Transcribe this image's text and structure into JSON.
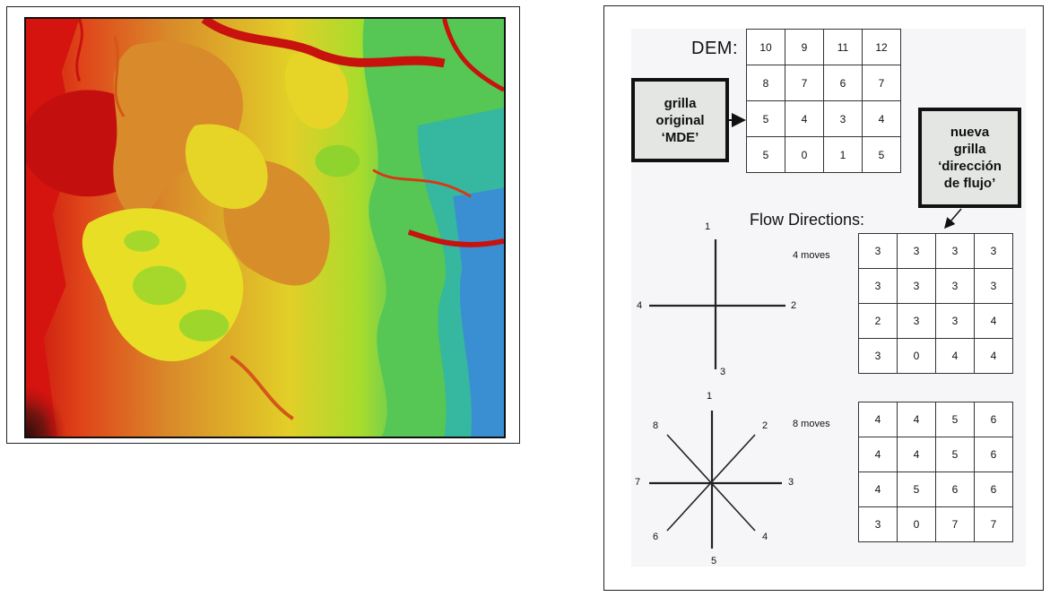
{
  "dem_title": "DEM:",
  "dem_grid": [
    [
      "10",
      "9",
      "11",
      "12"
    ],
    [
      "8",
      "7",
      "6",
      "7"
    ],
    [
      "5",
      "4",
      "3",
      "4"
    ],
    [
      "5",
      "0",
      "1",
      "5"
    ]
  ],
  "callout_original": [
    "grilla",
    "original",
    "‘MDE’"
  ],
  "callout_new": [
    "nueva",
    "grilla",
    "‘dirección",
    "de flujo’"
  ],
  "flow_title": "Flow Directions:",
  "four_moves": {
    "label": "4 moves",
    "numbers": {
      "up": "1",
      "right": "2",
      "down": "3",
      "left": "4"
    },
    "grid": [
      [
        "3",
        "3",
        "3",
        "3"
      ],
      [
        "3",
        "3",
        "3",
        "3"
      ],
      [
        "2",
        "3",
        "3",
        "4"
      ],
      [
        "3",
        "0",
        "4",
        "4"
      ]
    ]
  },
  "eight_moves": {
    "label": "8 moves",
    "numbers": {
      "n": "1",
      "ne": "2",
      "e": "3",
      "se": "4",
      "s": "5",
      "sw": "6",
      "w": "7",
      "nw": "8"
    },
    "grid": [
      [
        "4",
        "4",
        "5",
        "6"
      ],
      [
        "4",
        "4",
        "5",
        "6"
      ],
      [
        "4",
        "5",
        "6",
        "6"
      ],
      [
        "3",
        "0",
        "7",
        "7"
      ]
    ]
  },
  "colors": {
    "dem_map_palette": [
      "#3a0f0a",
      "#b40f0f",
      "#e21c10",
      "#e0461a",
      "#d98a2a",
      "#d9a327",
      "#e8de25",
      "#b9e02a",
      "#66cc33",
      "#33c07a",
      "#3aa0c8",
      "#2255cc"
    ]
  }
}
